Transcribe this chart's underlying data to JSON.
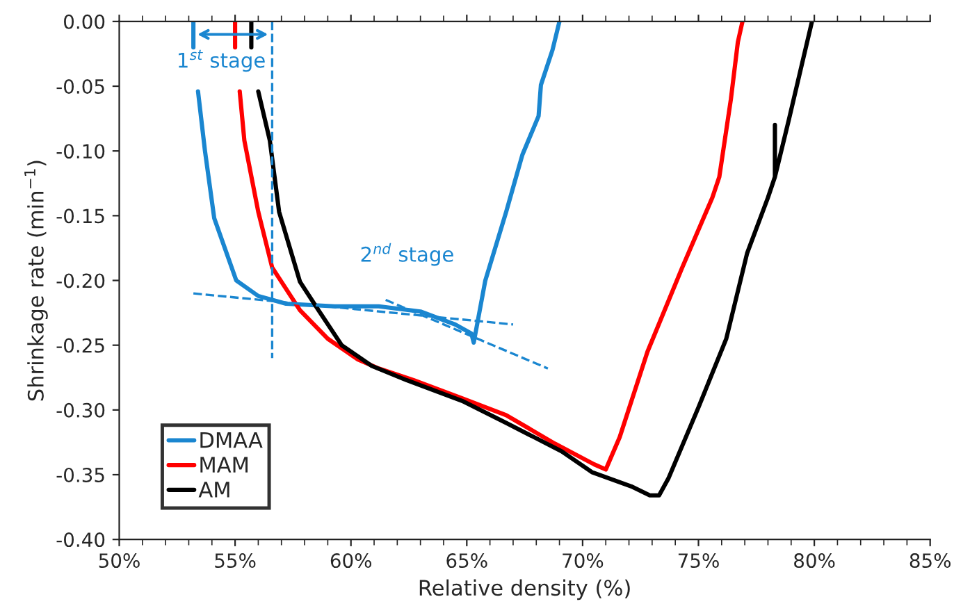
{
  "chart_data": {
    "type": "line",
    "xlabel": "Relative density (%)",
    "ylabel": "Shrinkage rate (min$^{−1}$)",
    "xlim": [
      50,
      85
    ],
    "xticks": [
      {
        "value": 50,
        "label": "50%"
      },
      {
        "value": 55,
        "label": "55%"
      },
      {
        "value": 60,
        "label": "60%"
      },
      {
        "value": 65,
        "label": "65%"
      },
      {
        "value": 70,
        "label": "70%"
      },
      {
        "value": 75,
        "label": "75%"
      },
      {
        "value": 80,
        "label": "80%"
      },
      {
        "value": 85,
        "label": "85%"
      }
    ],
    "ylim": [
      -0.4,
      0
    ],
    "yticks": [
      {
        "value": 0,
        "label": "0.00"
      },
      {
        "value": -0.05,
        "label": "-0.05"
      },
      {
        "value": -0.1,
        "label": "-0.10"
      },
      {
        "value": -0.15,
        "label": "-0.15"
      },
      {
        "value": -0.2,
        "label": "-0.20"
      },
      {
        "value": -0.25,
        "label": "-0.25"
      },
      {
        "value": -0.3,
        "label": "-0.30"
      },
      {
        "value": -0.35,
        "label": "-0.35"
      },
      {
        "value": -0.4,
        "label": "-0.40"
      }
    ],
    "grid": false,
    "legend": "bottom left",
    "line_style": "solid",
    "annotations": [
      {
        "text": "1$^{st}$ stage",
        "x": 54.9,
        "y": -0.01
      },
      "2$^{nd}$ stage"
    ],
    "series": [
      {
        "name": "DMAA",
        "color": "#1a86d0",
        "x": [
          53.2,
          53.2,
          53.3,
          53.4,
          53.7,
          54.1,
          55.05,
          56.0,
          57.2,
          59.3,
          61.2,
          63.0,
          64.5,
          65.2,
          65.3,
          65.8,
          66.7,
          67.4,
          68.1,
          68.2,
          68.7,
          69.0
        ],
        "values": [
          0,
          -0.02,
          null,
          -0.054,
          -0.1,
          -0.152,
          -0.2,
          -0.212,
          -0.218,
          -0.22,
          -0.22,
          -0.224,
          -0.234,
          -0.241,
          -0.248,
          -0.2,
          -0.147,
          -0.103,
          -0.073,
          -0.049,
          -0.022,
          0
        ]
      },
      {
        "name": "MAM",
        "color": "#ff0000",
        "x": [
          55.0,
          55.0,
          55.1,
          55.2,
          55.4,
          56.0,
          56.6,
          57.8,
          59.0,
          60.3,
          61.2,
          62.7,
          64.8,
          66.7,
          68.8,
          70.5,
          71.0,
          71.6,
          72.8,
          74.3,
          75.6,
          75.9,
          76.4,
          76.7,
          76.9
        ],
        "values": [
          0,
          -0.02,
          null,
          -0.054,
          -0.092,
          -0.147,
          -0.19,
          -0.223,
          -0.245,
          -0.261,
          -0.268,
          -0.277,
          -0.291,
          -0.304,
          -0.326,
          -0.342,
          -0.346,
          -0.321,
          -0.255,
          -0.19,
          -0.136,
          -0.12,
          -0.06,
          -0.016,
          0
        ]
      },
      {
        "name": "AM",
        "color": "#000000",
        "x": [
          55.7,
          55.7,
          55.8,
          56.0,
          56.5,
          56.9,
          57.8,
          58.6,
          59.6,
          60.9,
          62.4,
          64.8,
          66.7,
          69.1,
          70.4,
          72.1,
          72.9,
          73.3,
          73.7,
          75.0,
          76.2,
          77.1,
          78.0,
          78.3,
          78.3,
          78.3,
          78.9,
          79.4,
          79.9
        ],
        "values": [
          0,
          -0.02,
          null,
          -0.054,
          -0.092,
          -0.147,
          -0.201,
          -0.223,
          -0.25,
          -0.266,
          -0.277,
          -0.293,
          -0.31,
          -0.332,
          -0.348,
          -0.359,
          -0.366,
          -0.366,
          -0.353,
          -0.298,
          -0.245,
          -0.179,
          -0.136,
          -0.12,
          -0.08,
          -0.12,
          -0.076,
          -0.038,
          0
        ]
      },
      {
        "type": "line",
        "color": "#1a86d0",
        "line_style": "dashed",
        "x": [
          56.6,
          56.6
        ],
        "values": [
          0,
          -0.26
        ]
      },
      {
        "type": "line",
        "color": "#1a86d0",
        "line_style": "dashed",
        "x": [
          53.2,
          67.0
        ],
        "values": [
          -0.21,
          -0.234
        ]
      },
      {
        "type": "line",
        "color": "#1a86d0",
        "line_style": "dashed",
        "x": [
          61.5,
          68.5
        ],
        "values": [
          -0.215,
          -0.268
        ]
      }
    ]
  }
}
